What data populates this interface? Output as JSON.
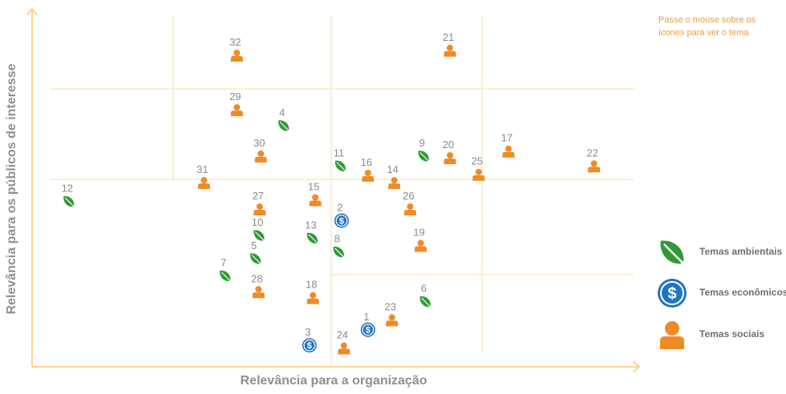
{
  "hint": "Passe o mouse sobre os ícones para ver o tema",
  "chart_data": {
    "type": "scatter",
    "xlabel": "Relevância para a organização",
    "ylabel": "Relevância para os públicos de interesse",
    "xlim": [
      0,
      100
    ],
    "ylim": [
      0,
      100
    ],
    "grid": true,
    "legend_position": "right",
    "legend": [
      {
        "key": "ambiental",
        "label": "Temas ambientais",
        "icon": "leaf-icon",
        "color": "#2f9a36"
      },
      {
        "key": "economico",
        "label": "Temas econômicos",
        "icon": "dollar-icon",
        "color": "#1f74c4"
      },
      {
        "key": "social",
        "label": "Temas sociais",
        "icon": "person-icon",
        "color": "#f08a26"
      }
    ],
    "points": [
      {
        "label": "1",
        "type": "economico",
        "x": 56.0,
        "y": 9.5
      },
      {
        "label": "2",
        "type": "economico",
        "x": 51.5,
        "y": 42.5
      },
      {
        "label": "3",
        "type": "economico",
        "x": 46.0,
        "y": 4.8
      },
      {
        "label": "4",
        "type": "ambiental",
        "x": 41.6,
        "y": 71.2
      },
      {
        "label": "5",
        "type": "ambiental",
        "x": 36.8,
        "y": 31.0
      },
      {
        "label": "6",
        "type": "ambiental",
        "x": 65.8,
        "y": 18.0
      },
      {
        "label": "7",
        "type": "ambiental",
        "x": 31.6,
        "y": 25.8
      },
      {
        "label": "8",
        "type": "ambiental",
        "x": 51.0,
        "y": 33.0
      },
      {
        "label": "9",
        "type": "ambiental",
        "x": 65.5,
        "y": 62.0
      },
      {
        "label": "10",
        "type": "ambiental",
        "x": 37.4,
        "y": 38.0
      },
      {
        "label": "11",
        "type": "ambiental",
        "x": 51.3,
        "y": 59.0
      },
      {
        "label": "12",
        "type": "ambiental",
        "x": 4.9,
        "y": 48.3
      },
      {
        "label": "13",
        "type": "ambiental",
        "x": 46.5,
        "y": 37.2
      },
      {
        "label": "14",
        "type": "social",
        "x": 60.5,
        "y": 54.0
      },
      {
        "label": "15",
        "type": "social",
        "x": 47.0,
        "y": 48.8
      },
      {
        "label": "16",
        "type": "social",
        "x": 56.0,
        "y": 56.2
      },
      {
        "label": "17",
        "type": "social",
        "x": 80.0,
        "y": 63.5
      },
      {
        "label": "18",
        "type": "social",
        "x": 46.6,
        "y": 19.2
      },
      {
        "label": "19",
        "type": "social",
        "x": 65.0,
        "y": 35.0
      },
      {
        "label": "20",
        "type": "social",
        "x": 70.0,
        "y": 61.5
      },
      {
        "label": "21",
        "type": "social",
        "x": 70.0,
        "y": 94.0
      },
      {
        "label": "22",
        "type": "social",
        "x": 94.6,
        "y": 59.0
      },
      {
        "label": "23",
        "type": "social",
        "x": 60.1,
        "y": 12.5
      },
      {
        "label": "24",
        "type": "social",
        "x": 51.9,
        "y": 4.0
      },
      {
        "label": "25",
        "type": "social",
        "x": 74.9,
        "y": 56.5
      },
      {
        "label": "26",
        "type": "social",
        "x": 63.2,
        "y": 46.0
      },
      {
        "label": "27",
        "type": "social",
        "x": 37.5,
        "y": 46.0
      },
      {
        "label": "28",
        "type": "social",
        "x": 37.3,
        "y": 21.0
      },
      {
        "label": "29",
        "type": "social",
        "x": 33.6,
        "y": 76.0
      },
      {
        "label": "30",
        "type": "social",
        "x": 37.7,
        "y": 62.0
      },
      {
        "label": "31",
        "type": "social",
        "x": 28.0,
        "y": 54.0
      },
      {
        "label": "32",
        "type": "social",
        "x": 33.6,
        "y": 92.5
      }
    ]
  }
}
